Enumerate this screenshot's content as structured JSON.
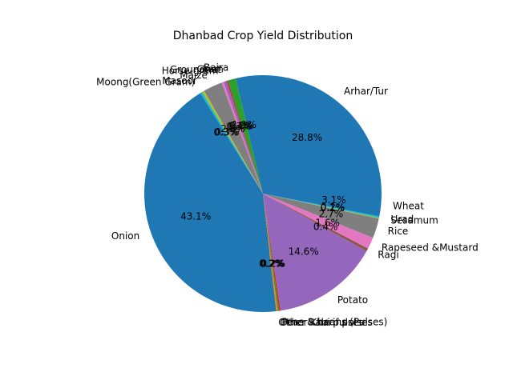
{
  "chart_data": {
    "type": "pie",
    "title": "Dhanbad Crop Yield Distribution",
    "start_angle": 0,
    "direction": "counterclockwise",
    "slices": [
      {
        "label": "Arhar/Tur",
        "value": 28.8,
        "pct_label": "28.8%",
        "color": "#1f77b4"
      },
      {
        "label": "Bajra",
        "value": 1.1,
        "pct_label": "1.1%",
        "color": "#2ca02c"
      },
      {
        "label": "Gram",
        "value": 0.2,
        "pct_label": "0.2%",
        "color": "#d62728"
      },
      {
        "label": "Groundnut",
        "value": 0.4,
        "pct_label": "0.4%",
        "color": "#9467bd"
      },
      {
        "label": "Horse-gram",
        "value": 0.3,
        "pct_label": "0.3%",
        "color": "#e377c2"
      },
      {
        "label": "Maize",
        "value": 2.6,
        "pct_label": "2.6%",
        "color": "#7f7f7f"
      },
      {
        "label": "Masoor",
        "value": 0.3,
        "pct_label": "0.3%",
        "color": "#bcbd22"
      },
      {
        "label": "Moong(Green Gram)",
        "value": 0.3,
        "pct_label": "0.3%",
        "color": "#17becf"
      },
      {
        "label": "Onion",
        "value": 43.1,
        "pct_label": "43.1%",
        "color": "#1f77b4"
      },
      {
        "label": "Other Rabi pulses",
        "value": 0.2,
        "pct_label": "0.2%",
        "color": "#ff7f0e"
      },
      {
        "label": "Other Kharif pulses",
        "value": 0.2,
        "pct_label": "0.2%",
        "color": "#2ca02c"
      },
      {
        "label": "Peas & beans (Pulses)",
        "value": 0.2,
        "pct_label": "0.2%",
        "color": "#d62728"
      },
      {
        "label": "Potato",
        "value": 14.6,
        "pct_label": "14.6%",
        "color": "#9467bd"
      },
      {
        "label": "Ragi",
        "value": 0.4,
        "pct_label": "0.4%",
        "color": "#8c564b"
      },
      {
        "label": "Rapeseed &Mustard",
        "value": 1.6,
        "pct_label": "1.6%",
        "color": "#e377c2"
      },
      {
        "label": "Rice",
        "value": 2.7,
        "pct_label": "2.7%",
        "color": "#7f7f7f"
      },
      {
        "label": "Sesamum",
        "value": 0.1,
        "pct_label": "0.1%",
        "color": "#bcbd22"
      },
      {
        "label": "Urad",
        "value": 0.2,
        "pct_label": "0.2%",
        "color": "#17becf"
      },
      {
        "label": "Wheat",
        "value": 3.1,
        "pct_label": "3.1%",
        "color": "#1f77b4"
      }
    ]
  }
}
